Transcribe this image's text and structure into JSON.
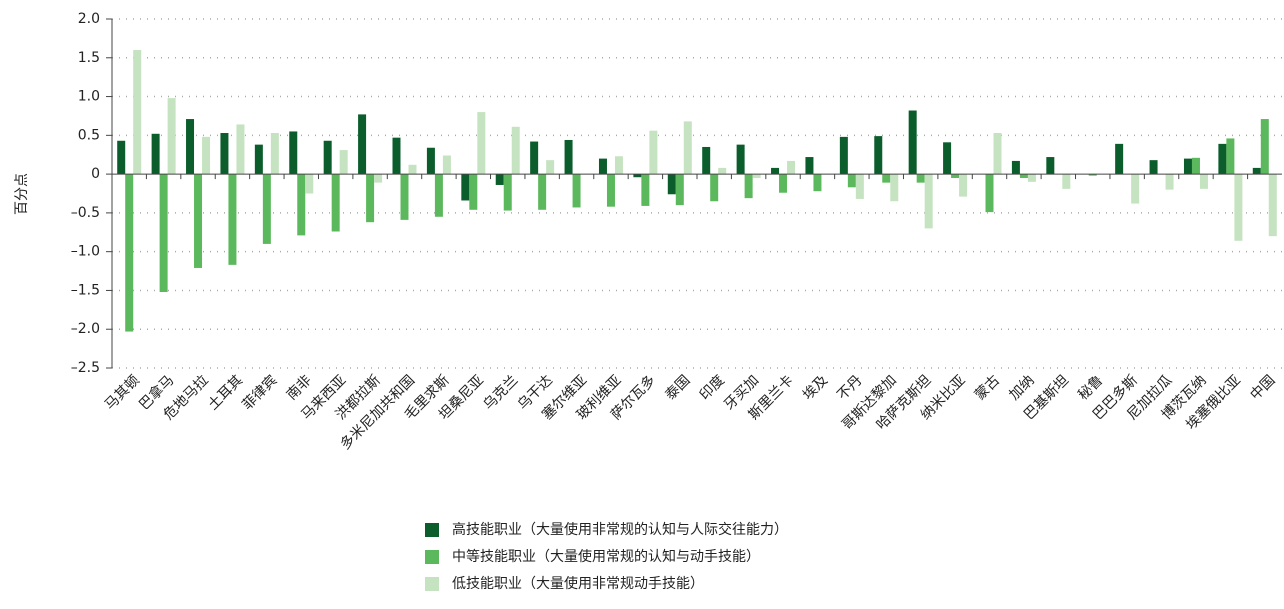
{
  "chart_data": {
    "type": "bar",
    "ylabel": "百分点",
    "categories": [
      "马其顿",
      "巴拿马",
      "危地马拉",
      "土耳其",
      "菲律宾",
      "南非",
      "马来西亚",
      "洪都拉斯",
      "多米尼加共和国",
      "毛里求斯",
      "坦桑尼亚",
      "乌克兰",
      "乌干达",
      "塞尔维亚",
      "玻利维亚",
      "萨尔瓦多",
      "泰国",
      "印度",
      "牙买加",
      "斯里兰卡",
      "埃及",
      "不丹",
      "哥斯达黎加",
      "哈萨克斯坦",
      "纳米比亚",
      "蒙古",
      "加纳",
      "巴基斯坦",
      "秘鲁",
      "巴巴多斯",
      "尼加拉瓜",
      "博茨瓦纳",
      "埃塞俄比亚",
      "中国"
    ],
    "series": [
      {
        "name": "高技能职业（大量使用非常规的认知与人际交往能力）",
        "color": "#0b5e2c",
        "values": [
          0.43,
          0.52,
          0.71,
          0.53,
          0.38,
          0.55,
          0.43,
          0.77,
          0.47,
          0.34,
          -0.34,
          -0.14,
          0.42,
          0.44,
          0.2,
          -0.04,
          -0.26,
          0.35,
          0.38,
          0.08,
          0.22,
          0.48,
          0.49,
          0.82,
          0.41,
          0,
          0.17,
          0.22,
          0,
          0.39,
          0.18,
          0.2,
          0.39,
          0.08
        ]
      },
      {
        "name": "中等技能职业（大量使用常规的认知与动手技能）",
        "color": "#5cb85c",
        "values": [
          -2.03,
          -1.52,
          -1.21,
          -1.17,
          -0.9,
          -0.79,
          -0.74,
          -0.62,
          -0.59,
          -0.55,
          -0.46,
          -0.47,
          -0.46,
          -0.43,
          -0.42,
          -0.41,
          -0.4,
          -0.35,
          -0.31,
          -0.24,
          -0.22,
          -0.17,
          -0.11,
          -0.11,
          -0.05,
          -0.49,
          -0.05,
          0,
          -0.02,
          0,
          0,
          0.21,
          0.46,
          0.71
        ]
      },
      {
        "name": "低技能职业（大量使用非常规动手技能）",
        "color": "#c6e3c1",
        "values": [
          1.6,
          0.98,
          0.48,
          0.64,
          0.53,
          -0.25,
          0.31,
          -0.11,
          0.12,
          0.24,
          0.8,
          0.61,
          0.18,
          0,
          0.23,
          0.56,
          0.68,
          0.08,
          -0.05,
          0.17,
          0,
          -0.32,
          -0.35,
          -0.7,
          -0.29,
          0.53,
          -0.1,
          -0.19,
          0,
          -0.38,
          -0.2,
          -0.19,
          -0.86,
          -0.8
        ]
      }
    ],
    "ylim": [
      -2.5,
      2.0
    ],
    "yticks": [
      {
        "value": 2,
        "label": "2.0"
      },
      1.5,
      {
        "value": 1,
        "label": "1.0"
      },
      0.5,
      {
        "value": 0,
        "label": "0"
      },
      {
        "value": -0.5,
        "label": "–0.5"
      },
      {
        "value": -1,
        "label": "–1.0"
      },
      {
        "value": -1.5,
        "label": "–1.5"
      },
      {
        "value": -2,
        "label": "–2.0"
      },
      {
        "value": -2.5,
        "label": "–2.5"
      }
    ],
    "grid": true
  }
}
